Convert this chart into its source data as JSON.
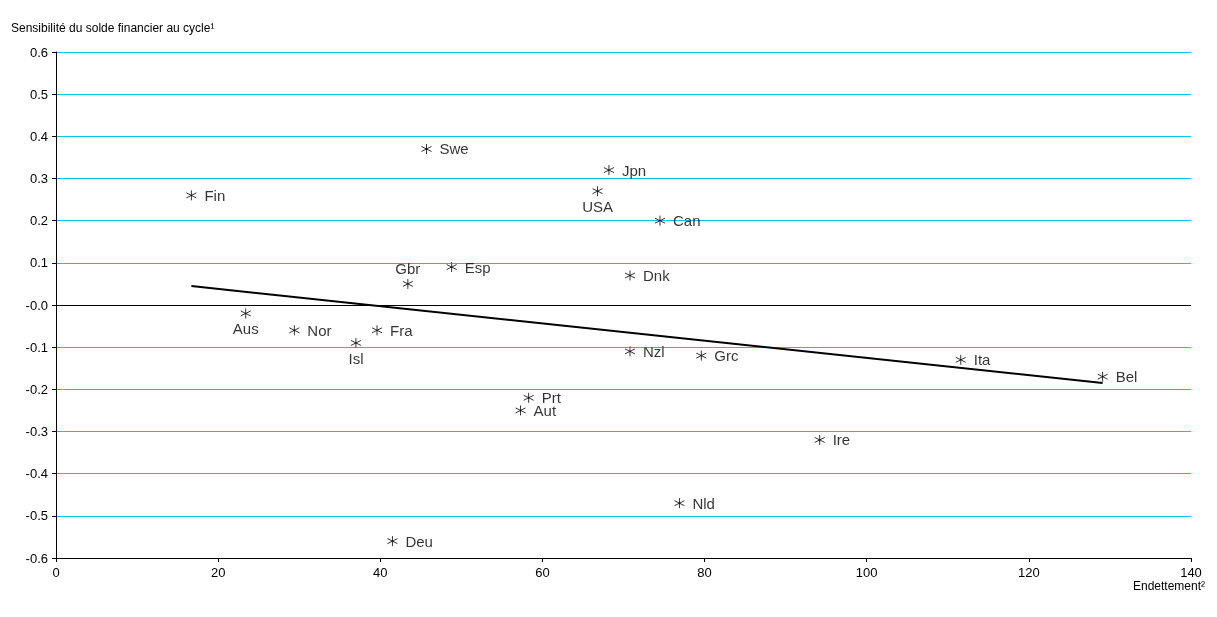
{
  "chart_data": {
    "type": "scatter",
    "xlabel": "Endettement²",
    "ylabel": "Sensibilité du solde financier au cycle¹",
    "xlim": [
      0,
      140
    ],
    "xticks": [
      0,
      20,
      40,
      60,
      80,
      100,
      120,
      140
    ],
    "ylim": [
      -0.6,
      0.6
    ],
    "yticks": [
      -0.6,
      -0.5,
      -0.4,
      -0.3,
      -0.2,
      -0.1,
      {
        "value": 0,
        "label": "-0.0"
      },
      0.1,
      0.2,
      0.3,
      0.4,
      0.5,
      0.6
    ],
    "grid": "y",
    "marker": "cross",
    "ref_lines": [
      {
        "axis": "y",
        "value": 0,
        "color": "#000000"
      }
    ],
    "series": [
      {
        "color": "#000000",
        "x": [
          16.7,
          45.7,
          68.2,
          66.8,
          74.5,
          43.4,
          48.8,
          70.8,
          23.4,
          29.4,
          39.6,
          37.0,
          70.8,
          79.6,
          111.6,
          129.1,
          58.3,
          57.3,
          94.2,
          76.9,
          41.5
        ],
        "values": [
          0.26,
          0.37,
          0.32,
          0.27,
          0.2,
          0.05,
          0.09,
          0.07,
          -0.02,
          -0.06,
          -0.06,
          -0.09,
          -0.11,
          -0.12,
          -0.13,
          -0.17,
          -0.22,
          -0.25,
          -0.32,
          -0.47,
          -0.56
        ]
      },
      {
        "type": "line",
        "color": "#000000",
        "marker": "none",
        "x": [
          16.7,
          129.1
        ],
        "values": [
          0.045,
          -0.185
        ]
      }
    ],
    "annotations": [
      {
        "text": "Fin",
        "x": 16.7,
        "y": 0.26
      },
      {
        "text": "Swe",
        "x": 45.7,
        "y": 0.37
      },
      {
        "text": "Jpn",
        "x": 68.2,
        "y": 0.32
      },
      {
        "text": "USA",
        "x": 66.8,
        "y": 0.27
      },
      {
        "text": "Can",
        "x": 74.5,
        "y": 0.2
      },
      {
        "text": "Gbr",
        "x": 43.4,
        "y": 0.05
      },
      {
        "text": "Esp",
        "x": 48.8,
        "y": 0.09
      },
      {
        "text": "Dnk",
        "x": 70.8,
        "y": 0.07
      },
      {
        "text": "Aus",
        "x": 23.4,
        "y": -0.02
      },
      {
        "text": "Nor",
        "x": 29.4,
        "y": -0.06
      },
      {
        "text": "Fra",
        "x": 39.6,
        "y": -0.06
      },
      {
        "text": "Isl",
        "x": 37.0,
        "y": -0.09
      },
      {
        "text": "Nzl",
        "x": 70.8,
        "y": -0.11
      },
      {
        "text": "Grc",
        "x": 79.6,
        "y": -0.12
      },
      {
        "text": "Ita",
        "x": 111.6,
        "y": -0.13
      },
      {
        "text": "Bel",
        "x": 129.1,
        "y": -0.17
      },
      {
        "text": "Prt",
        "x": 58.3,
        "y": -0.22
      },
      {
        "text": "Aut",
        "x": 57.3,
        "y": -0.25
      },
      {
        "text": "Ire",
        "x": 94.2,
        "y": -0.32
      },
      {
        "text": "Nld",
        "x": 76.9,
        "y": -0.47
      },
      {
        "text": "Deu",
        "x": 41.5,
        "y": -0.56
      }
    ]
  }
}
